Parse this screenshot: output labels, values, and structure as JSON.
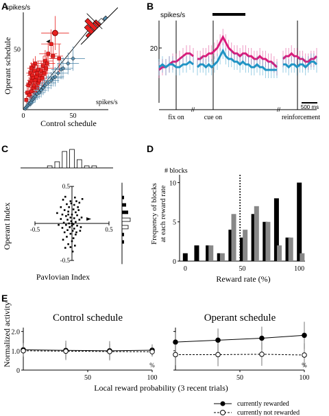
{
  "panel_labels": {
    "A": "A",
    "B": "B",
    "C": "C",
    "D": "D",
    "E": "E"
  },
  "chart_data": [
    {
      "panel": "A",
      "type": "scatter",
      "title": "",
      "xlabel": "Control schedule",
      "ylabel": "Operant schedule",
      "x_unit": "spikes/s",
      "y_unit": "spikes/s",
      "xlim": [
        0,
        80
      ],
      "ylim": [
        0,
        80
      ],
      "xticks": [
        "0",
        "50"
      ],
      "yticks": [
        "50"
      ],
      "series": [
        {
          "color": "#e8201f",
          "points": [
            [
              3,
              8
            ],
            [
              4,
              14
            ],
            [
              5,
              20
            ],
            [
              6,
              5
            ],
            [
              6,
              12
            ],
            [
              7,
              22
            ],
            [
              7,
              30
            ],
            [
              8,
              15
            ],
            [
              8,
              24
            ],
            [
              9,
              28
            ],
            [
              9,
              10
            ],
            [
              10,
              18
            ],
            [
              10,
              26
            ],
            [
              11,
              20
            ],
            [
              11,
              32
            ],
            [
              12,
              14
            ],
            [
              12,
              24
            ],
            [
              13,
              27
            ],
            [
              14,
              30
            ],
            [
              14,
              18
            ],
            [
              15,
              22
            ],
            [
              15,
              33
            ],
            [
              16,
              24
            ],
            [
              17,
              28
            ],
            [
              18,
              32
            ],
            [
              19,
              26
            ],
            [
              20,
              36
            ],
            [
              21,
              30
            ],
            [
              22,
              40
            ],
            [
              23,
              34
            ],
            [
              24,
              38
            ],
            [
              25,
              46
            ],
            [
              28,
              54
            ],
            [
              30,
              44
            ],
            [
              32,
              63
            ],
            [
              36,
              42
            ],
            [
              12,
              38
            ],
            [
              10,
              36
            ],
            [
              8,
              34
            ]
          ],
          "xerr": [
            2,
            3,
            3,
            2,
            3,
            4,
            4,
            3,
            4,
            5,
            3,
            4,
            5,
            4,
            6,
            4,
            5,
            5,
            6,
            5,
            5,
            6,
            6,
            6,
            7,
            6,
            7,
            8,
            8,
            8,
            8,
            9,
            10,
            10,
            14,
            10,
            5,
            4,
            4
          ],
          "yerr": [
            3,
            4,
            5,
            2,
            4,
            6,
            6,
            4,
            5,
            6,
            3,
            5,
            6,
            5,
            7,
            4,
            6,
            6,
            7,
            5,
            6,
            7,
            6,
            7,
            8,
            7,
            8,
            8,
            9,
            9,
            9,
            10,
            12,
            11,
            14,
            12,
            6,
            6,
            5
          ]
        },
        {
          "color": "#5a8fb0",
          "points": [
            [
              2,
              1
            ],
            [
              3,
              2
            ],
            [
              4,
              3
            ],
            [
              5,
              4
            ],
            [
              6,
              5
            ],
            [
              7,
              5
            ],
            [
              8,
              6
            ],
            [
              9,
              8
            ],
            [
              10,
              9
            ],
            [
              11,
              10
            ],
            [
              12,
              11
            ],
            [
              14,
              13
            ],
            [
              16,
              14
            ],
            [
              18,
              16
            ],
            [
              20,
              18
            ],
            [
              22,
              20
            ],
            [
              25,
              22
            ],
            [
              28,
              24
            ],
            [
              30,
              26
            ],
            [
              32,
              27
            ],
            [
              35,
              30
            ],
            [
              38,
              33
            ],
            [
              40,
              34
            ],
            [
              45,
              38
            ],
            [
              50,
              42
            ]
          ],
          "xerr": [
            2,
            2,
            2,
            3,
            3,
            3,
            4,
            4,
            4,
            5,
            5,
            5,
            6,
            6,
            7,
            7,
            8,
            8,
            9,
            9,
            10,
            10,
            10,
            11,
            12
          ],
          "yerr": [
            2,
            2,
            2,
            3,
            3,
            3,
            3,
            4,
            4,
            4,
            5,
            5,
            5,
            6,
            6,
            6,
            7,
            7,
            7,
            8,
            8,
            8,
            9,
            9,
            10
          ]
        }
      ],
      "reference_line": "unity",
      "inset": "histogram"
    },
    {
      "panel": "B",
      "type": "line",
      "title": "",
      "y_unit": "spikes/s",
      "ylim": [
        0,
        30
      ],
      "yticks": [
        "20"
      ],
      "scale_bar": "500 ms",
      "events": [
        "fix on",
        "cue on",
        "reinforcement"
      ],
      "series": [
        {
          "color": "#d81b7a",
          "segments": [
            [
              12,
              13,
              13,
              14,
              15,
              15,
              16,
              17,
              18,
              18,
              17
            ],
            [
              16,
              16,
              17,
              17,
              18,
              18,
              19,
              20,
              22,
              24,
              22,
              20,
              19,
              18,
              18,
              17,
              18,
              18,
              17,
              17,
              16,
              16,
              17,
              16,
              16,
              15,
              15,
              14,
              13
            ],
            [
              16,
              17,
              17,
              18,
              17,
              17,
              16,
              16,
              15,
              15,
              16,
              16,
              17
            ]
          ]
        },
        {
          "color": "#1f93c4",
          "segments": [
            [
              13,
              14,
              13,
              14,
              14,
              13,
              13,
              14,
              14,
              15,
              14
            ],
            [
              13,
              14,
              14,
              13,
              14,
              13,
              14,
              15,
              17,
              19,
              17,
              16,
              16,
              15,
              15,
              14,
              15,
              14,
              14,
              13,
              13,
              14,
              13,
              13,
              12,
              12,
              12,
              12,
              12
            ],
            [
              14,
              14,
              13,
              14,
              14,
              13,
              14,
              14,
              13,
              14,
              15,
              15,
              14
            ]
          ]
        }
      ]
    },
    {
      "panel": "C",
      "type": "scatter",
      "title": "",
      "xlabel": "Pavlovian Index",
      "ylabel": "Operant Index",
      "xlim": [
        -0.5,
        0.5
      ],
      "ylim": [
        -0.5,
        0.5
      ],
      "xticks": [
        "-0.5",
        "0.5"
      ],
      "yticks": [
        "0.5",
        "-0.5"
      ],
      "points": [
        [
          -0.09,
          0.36
        ],
        [
          0.04,
          0.35
        ],
        [
          -0.12,
          0.32
        ],
        [
          -0.02,
          0.3
        ],
        [
          0.06,
          0.3
        ],
        [
          0.1,
          0.28
        ],
        [
          0.14,
          0.33
        ],
        [
          -0.07,
          0.26
        ],
        [
          0.03,
          0.25
        ],
        [
          -0.15,
          0.22
        ],
        [
          -0.04,
          0.22
        ],
        [
          0.08,
          0.22
        ],
        [
          0.02,
          0.19
        ],
        [
          -0.1,
          0.18
        ],
        [
          -0.05,
          0.16
        ],
        [
          0.05,
          0.15
        ],
        [
          -0.2,
          0.14
        ],
        [
          -0.13,
          0.12
        ],
        [
          0.0,
          0.12
        ],
        [
          0.07,
          0.11
        ],
        [
          -0.08,
          0.1
        ],
        [
          -0.02,
          0.08
        ],
        [
          0.03,
          0.07
        ],
        [
          -0.15,
          0.06
        ],
        [
          -0.06,
          0.05
        ],
        [
          0.1,
          0.05
        ],
        [
          -0.01,
          0.03
        ],
        [
          0.05,
          0.02
        ],
        [
          -0.11,
          0.01
        ],
        [
          -0.04,
          0.0
        ],
        [
          0.02,
          -0.01
        ],
        [
          -0.08,
          -0.02
        ],
        [
          0.0,
          -0.03
        ],
        [
          0.07,
          -0.03
        ],
        [
          -0.03,
          -0.05
        ],
        [
          -0.13,
          -0.06
        ],
        [
          0.03,
          -0.07
        ],
        [
          -0.06,
          -0.09
        ],
        [
          0.01,
          -0.1
        ],
        [
          0.11,
          -0.1
        ],
        [
          -0.1,
          -0.12
        ],
        [
          -0.02,
          -0.14
        ],
        [
          0.05,
          -0.15
        ],
        [
          -0.07,
          -0.18
        ],
        [
          0.02,
          -0.2
        ],
        [
          -0.12,
          -0.22
        ],
        [
          0.0,
          -0.24
        ],
        [
          -0.05,
          -0.28
        ],
        [
          0.04,
          -0.3
        ],
        [
          -0.09,
          -0.33
        ],
        [
          0.01,
          -0.38
        ],
        [
          -0.03,
          -0.05
        ],
        [
          0.0,
          0.0
        ],
        [
          -0.05,
          0.12
        ],
        [
          0.06,
          -0.12
        ],
        [
          0.13,
          0.08
        ],
        [
          -0.18,
          -0.02
        ],
        [
          0.09,
          0.18
        ],
        [
          -0.01,
          0.27
        ],
        [
          0.12,
          -0.05
        ],
        [
          -0.02,
          -0.32
        ]
      ],
      "top_hist": {
        "bins": [
          -0.4,
          -0.3,
          -0.2,
          -0.1,
          0.0,
          0.1,
          0.2,
          0.3
        ],
        "filled": [
          0,
          0,
          0,
          0,
          0,
          0,
          0,
          0
        ],
        "open": [
          0,
          1,
          3,
          8,
          9,
          4,
          1,
          1
        ]
      },
      "side_hist": {
        "bins": [
          0.45,
          0.35,
          0.25,
          0.15,
          0.05,
          -0.05,
          -0.15,
          -0.25,
          -0.35
        ],
        "filled": [
          0,
          1,
          2,
          3,
          3,
          2,
          1,
          1,
          0
        ],
        "open": [
          0,
          0,
          0,
          0,
          4,
          3,
          0,
          0,
          0
        ]
      }
    },
    {
      "panel": "D",
      "type": "bar",
      "title": "",
      "xlabel": "Reward rate (%)",
      "ylabel": "Frequency of blocks at each reward rate",
      "y_unit": "# blocks",
      "xlim": [
        -5,
        105
      ],
      "ylim": [
        0,
        11
      ],
      "xticks": [
        "0",
        "50",
        "100"
      ],
      "yticks": [
        "10",
        "5",
        "0"
      ],
      "reference_x": 48,
      "series": [
        {
          "color": "#000000",
          "x": [
            0,
            10,
            20,
            30,
            40,
            50,
            60,
            70,
            80,
            90,
            100
          ],
          "values": [
            1,
            2,
            2,
            1,
            4,
            3,
            6,
            5,
            8,
            3,
            10
          ]
        },
        {
          "color": "#888888",
          "x": [
            2.5,
            12.5,
            22.5,
            32.5,
            42.5,
            52.5,
            62.5,
            72.5,
            82.5,
            92.5,
            102.5
          ],
          "values": [
            0,
            0,
            2,
            1,
            6,
            4,
            7,
            5,
            2,
            3,
            1
          ]
        }
      ]
    },
    {
      "panel": "E",
      "type": "line",
      "xlabel": "Local reward probability (3 recent trials)",
      "ylabel": "Normalized activity",
      "x_unit": "%",
      "legend": {
        "rewarded": "currently rewarded",
        "not_rewarded": "currently not rewarded"
      },
      "subplots": [
        {
          "title": "Control schedule",
          "xlim": [
            0,
            100
          ],
          "ylim": [
            0,
            2.2
          ],
          "xticks": [
            "50",
            "100"
          ],
          "yticks": [
            "2.0",
            "1.0",
            "0"
          ],
          "x": [
            0,
            33,
            67,
            100
          ],
          "series": [
            {
              "name": "rewarded",
              "values": [
                1.05,
                1.02,
                1.0,
                1.03
              ],
              "err": [
                0.35,
                0.5,
                0.5,
                0.3
              ]
            },
            {
              "name": "not_rewarded",
              "values": [
                1.0,
                0.98,
                0.96,
                0.95
              ],
              "err": [
                0.3,
                0.4,
                0.4,
                0.25
              ]
            }
          ]
        },
        {
          "title": "Operant schedule",
          "xlim": [
            0,
            100
          ],
          "ylim": [
            0,
            2.2
          ],
          "xticks": [
            "50",
            "100"
          ],
          "yticks": [
            "2.0",
            "1.0",
            "0"
          ],
          "x": [
            0,
            33,
            67,
            100
          ],
          "series": [
            {
              "name": "rewarded",
              "values": [
                1.45,
                1.55,
                1.65,
                1.8
              ],
              "err": [
                0.5,
                0.6,
                0.6,
                0.7
              ]
            },
            {
              "name": "not_rewarded",
              "values": [
                0.8,
                0.8,
                0.82,
                0.78
              ],
              "err": [
                0.55,
                0.6,
                0.6,
                0.6
              ]
            }
          ]
        }
      ]
    }
  ]
}
